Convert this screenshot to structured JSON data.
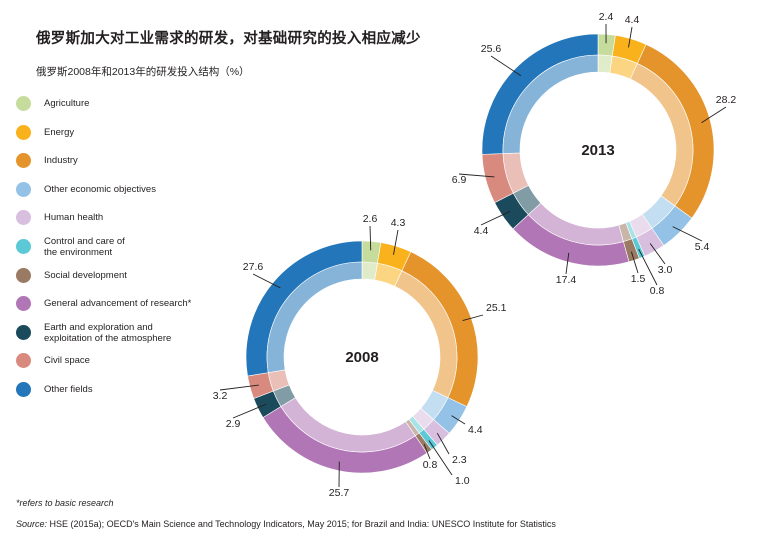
{
  "title": "俄罗斯加大对工业需求的研发，对基础研究的投入相应减少",
  "subtitle": "俄罗斯2008年和2013年的研发投入结构（%）",
  "footnote": "*refers to basic research",
  "source_prefix": "Source:",
  "source_text": "HSE (2015a); OECD's Main Science and Technology Indicators, May 2015; for Brazil and India: UNESCO Institute for Statistics",
  "colors": {
    "agriculture": "#c6dc9c",
    "energy": "#f9b21c",
    "industry": "#e5942b",
    "other_economic": "#93c2e6",
    "human_health": "#d8bfdf",
    "environment": "#5ccad6",
    "social": "#9a7a62",
    "general": "#b176b5",
    "earth": "#1b4a5c",
    "civil_space": "#d98a7e",
    "other_fields": "#2276b9"
  },
  "chart_data": {
    "type": "pie",
    "style": "donut",
    "legend_position": "left",
    "categories": [
      "Agriculture",
      "Energy",
      "Industry",
      "Other economic objectives",
      "Human health",
      "Control and care of the environment",
      "Social development",
      "General advancement of research*",
      "Earth and exploration and exploitation of the atmosphere",
      "Civil space",
      "Other fields"
    ],
    "legend_labels": [
      [
        "Agriculture"
      ],
      [
        "Energy"
      ],
      [
        "Industry"
      ],
      [
        "Other economic objectives"
      ],
      [
        "Human health"
      ],
      [
        "Control and care of",
        "the environment"
      ],
      [
        "Social development"
      ],
      [
        "General advancement of research*"
      ],
      [
        "Earth and exploration and",
        "exploitation of the atmosphere"
      ],
      [
        "Civil space"
      ],
      [
        "Other fields"
      ]
    ],
    "color_keys": [
      "agriculture",
      "energy",
      "industry",
      "other_economic",
      "human_health",
      "environment",
      "social",
      "general",
      "earth",
      "civil_space",
      "other_fields"
    ],
    "series": [
      {
        "name": "2008",
        "values": [
          2.6,
          4.3,
          25.1,
          4.4,
          2.3,
          1.0,
          0.8,
          25.7,
          2.9,
          3.2,
          27.6
        ],
        "value_labels": [
          "2.6",
          "4.3",
          "25.1",
          "4.4",
          "2.3",
          "1.0",
          "0.8",
          "25.7",
          "2.9",
          "3.2",
          "27.6"
        ]
      },
      {
        "name": "2013",
        "values": [
          2.4,
          4.4,
          28.2,
          5.4,
          3.0,
          0.8,
          1.5,
          17.4,
          4.4,
          6.9,
          25.6
        ],
        "value_labels": [
          "2.4",
          "4.4",
          "28.2",
          "5.4",
          "3.0",
          "0.8",
          "1.5",
          "17.4",
          "4.4",
          "6.9",
          "25.6"
        ]
      }
    ]
  }
}
